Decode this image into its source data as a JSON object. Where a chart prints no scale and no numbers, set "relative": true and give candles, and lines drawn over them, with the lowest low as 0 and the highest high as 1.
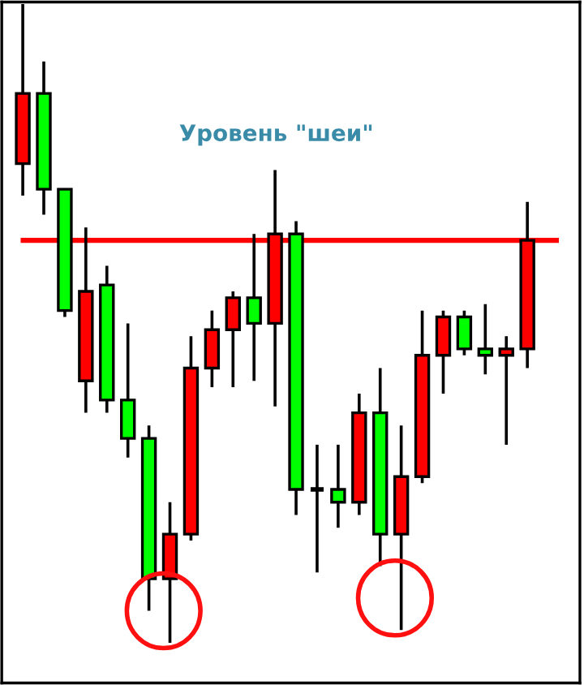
{
  "chart_data": {
    "type": "candlestick",
    "relative": true,
    "annotations": [
      "Уровень \"шеи\""
    ],
    "categories": [
      null,
      null,
      null,
      null,
      null,
      null,
      null,
      null,
      null,
      null,
      null,
      null,
      null,
      null,
      null,
      null,
      null,
      null,
      null,
      null,
      null,
      null,
      null,
      null,
      null
    ],
    "ohlc": [
      [
        0.75,
        1.0,
        0.7,
        0.86
      ],
      [
        0.86,
        0.91,
        0.67,
        0.71
      ],
      [
        0.71,
        0.71,
        0.51,
        0.52
      ],
      [
        0.41,
        0.65,
        0.36,
        0.55
      ],
      [
        0.56,
        0.59,
        0.36,
        0.38
      ],
      [
        0.38,
        0.5,
        0.29,
        0.32
      ],
      [
        0.32,
        0.34,
        0.05,
        0.1
      ],
      [
        0.1,
        0.22,
        0.0,
        0.17
      ],
      [
        0.17,
        0.48,
        0.16,
        0.43
      ],
      [
        0.43,
        0.52,
        0.4,
        0.49
      ],
      [
        0.49,
        0.55,
        0.4,
        0.54
      ],
      [
        0.54,
        0.64,
        0.41,
        0.5
      ],
      [
        0.5,
        0.74,
        0.37,
        0.64
      ],
      [
        0.64,
        0.66,
        0.2,
        0.24
      ],
      [
        0.24,
        0.31,
        0.11,
        0.24
      ],
      [
        0.24,
        0.31,
        0.18,
        0.22
      ],
      [
        0.22,
        0.39,
        0.2,
        0.36
      ],
      [
        0.36,
        0.43,
        0.12,
        0.17
      ],
      [
        0.17,
        0.34,
        0.02,
        0.26
      ],
      [
        0.26,
        0.52,
        0.25,
        0.45
      ],
      [
        0.45,
        0.52,
        0.39,
        0.51
      ],
      [
        0.51,
        0.52,
        0.45,
        0.46
      ],
      [
        0.46,
        0.53,
        0.42,
        0.45
      ],
      [
        0.45,
        0.48,
        0.31,
        0.46
      ],
      [
        0.46,
        0.69,
        0.43,
        0.63
      ]
    ],
    "colors": [
      "#ff0000",
      "#00ff00",
      "#00ff00",
      "#ff0000",
      "#00ff00",
      "#00ff00",
      "#00ff00",
      "#ff0000",
      "#ff0000",
      "#ff0000",
      "#ff0000",
      "#00ff00",
      "#ff0000",
      "#00ff00",
      "#000000",
      "#00ff00",
      "#ff0000",
      "#00ff00",
      "#ff0000",
      "#ff0000",
      "#ff0000",
      "#00ff00",
      "#00ff00",
      "#ff0000",
      "#ff0000"
    ],
    "ref_lines": [
      {
        "axis": "y",
        "value": 0.63,
        "color": "#ff0000"
      }
    ]
  }
}
